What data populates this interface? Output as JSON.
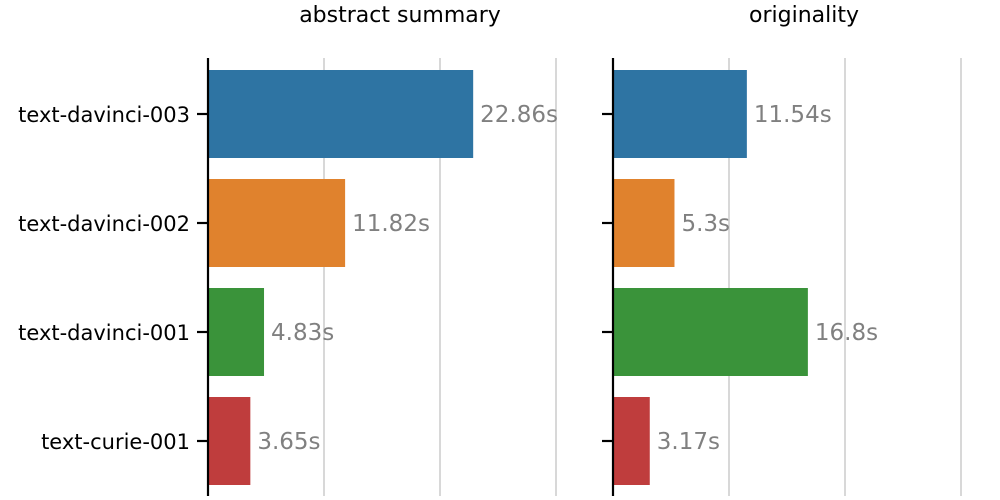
{
  "chart_data": {
    "type": "bar",
    "orientation": "horizontal",
    "categories": [
      "text-davinci-003",
      "text-davinci-002",
      "text-davinci-001",
      "text-curie-001"
    ],
    "colors": [
      "#2e74a3",
      "#e0822d",
      "#3a933a",
      "#bf3d3d"
    ],
    "grid": true,
    "panels": [
      {
        "title": "abstract summary",
        "values": [
          22.86,
          11.82,
          4.83,
          3.65
        ],
        "labels": [
          "22.86s",
          "11.82s",
          "4.83s",
          "3.65s"
        ],
        "xlim": [
          0,
          30
        ],
        "gridlines": [
          10,
          20,
          30
        ]
      },
      {
        "title": "originality",
        "values": [
          11.54,
          5.3,
          16.8,
          3.17
        ],
        "labels": [
          "11.54s",
          "5.3s",
          "16.8s",
          "3.17s"
        ],
        "xlim": [
          0,
          30
        ],
        "gridlines": [
          10,
          20,
          30
        ]
      }
    ]
  }
}
